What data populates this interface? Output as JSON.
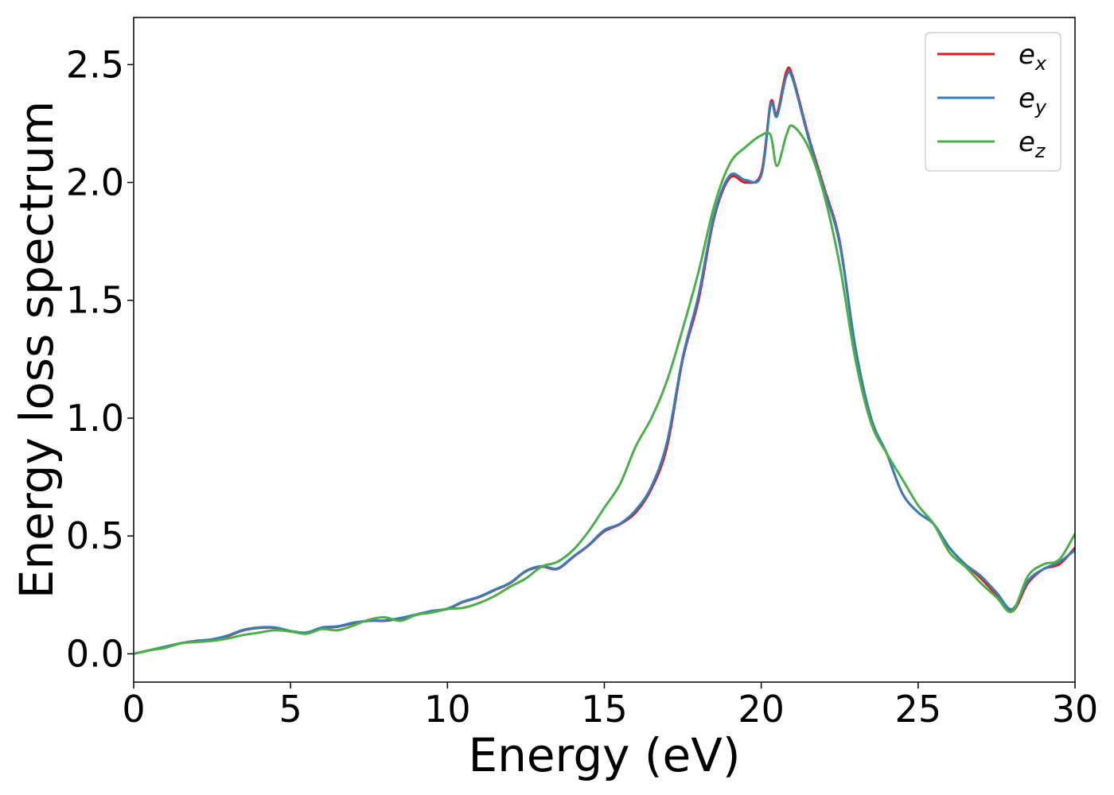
{
  "chart_data": {
    "type": "line",
    "title": "",
    "xlabel": "Energy (eV)",
    "ylabel": "Energy loss spectrum",
    "xlim": [
      0,
      30
    ],
    "ylim": [
      -0.12,
      2.7
    ],
    "xticks": [
      0,
      5,
      10,
      15,
      20,
      25,
      30
    ],
    "xtick_labels": [
      "0",
      "5",
      "10",
      "15",
      "20",
      "25",
      "30"
    ],
    "yticks": [
      0.0,
      0.5,
      1.0,
      1.5,
      2.0,
      2.5
    ],
    "ytick_labels": [
      "0.0",
      "0.5",
      "1.0",
      "1.5",
      "2.0",
      "2.5"
    ],
    "grid": false,
    "legend_position": "top-right",
    "series": [
      {
        "name": "e_x",
        "legend_base": "e",
        "legend_sub": "x",
        "color": "#e41a1c",
        "x": [
          0,
          0.5,
          1,
          1.5,
          2,
          2.5,
          3,
          3.5,
          4,
          4.5,
          5,
          5.5,
          6,
          6.5,
          7,
          7.5,
          8,
          8.5,
          9,
          9.5,
          10,
          10.5,
          11,
          11.5,
          12,
          12.5,
          13,
          13.5,
          14,
          14.5,
          15,
          15.5,
          16,
          16.5,
          17,
          17.5,
          18,
          18.5,
          19,
          19.5,
          20,
          20.3,
          20.5,
          20.8,
          21,
          21.5,
          22,
          22.5,
          23,
          23.5,
          24,
          24.5,
          25,
          25.5,
          26,
          26.5,
          27,
          27.5,
          28,
          28.5,
          29,
          29.5,
          30
        ],
        "y": [
          0,
          0.015,
          0.03,
          0.045,
          0.055,
          0.06,
          0.075,
          0.1,
          0.11,
          0.11,
          0.095,
          0.09,
          0.11,
          0.115,
          0.13,
          0.14,
          0.14,
          0.15,
          0.165,
          0.18,
          0.19,
          0.22,
          0.24,
          0.27,
          0.3,
          0.35,
          0.37,
          0.36,
          0.41,
          0.46,
          0.52,
          0.55,
          0.6,
          0.7,
          0.88,
          1.25,
          1.5,
          1.85,
          2.02,
          2.0,
          2.04,
          2.34,
          2.29,
          2.47,
          2.45,
          2.2,
          1.98,
          1.75,
          1.3,
          1.0,
          0.85,
          0.68,
          0.6,
          0.55,
          0.45,
          0.38,
          0.32,
          0.25,
          0.18,
          0.3,
          0.36,
          0.38,
          0.45
        ]
      },
      {
        "name": "e_y",
        "legend_base": "e",
        "legend_sub": "y",
        "color": "#377eb8",
        "x": [
          0,
          0.5,
          1,
          1.5,
          2,
          2.5,
          3,
          3.5,
          4,
          4.5,
          5,
          5.5,
          6,
          6.5,
          7,
          7.5,
          8,
          8.5,
          9,
          9.5,
          10,
          10.5,
          11,
          11.5,
          12,
          12.5,
          13,
          13.5,
          14,
          14.5,
          15,
          15.5,
          16,
          16.5,
          17,
          17.5,
          18,
          18.5,
          19,
          19.5,
          20,
          20.3,
          20.5,
          20.8,
          21,
          21.5,
          22,
          22.5,
          23,
          23.5,
          24,
          24.5,
          25,
          25.5,
          26,
          26.5,
          27,
          27.5,
          28,
          28.5,
          29,
          29.5,
          30
        ],
        "y": [
          0,
          0.015,
          0.03,
          0.045,
          0.055,
          0.062,
          0.078,
          0.102,
          0.112,
          0.112,
          0.097,
          0.09,
          0.112,
          0.117,
          0.132,
          0.14,
          0.142,
          0.152,
          0.167,
          0.182,
          0.192,
          0.222,
          0.242,
          0.272,
          0.302,
          0.352,
          0.372,
          0.362,
          0.412,
          0.462,
          0.525,
          0.552,
          0.61,
          0.71,
          0.9,
          1.26,
          1.52,
          1.86,
          2.03,
          2.01,
          2.03,
          2.33,
          2.28,
          2.45,
          2.44,
          2.19,
          1.97,
          1.74,
          1.3,
          1.0,
          0.85,
          0.68,
          0.6,
          0.55,
          0.45,
          0.38,
          0.33,
          0.26,
          0.19,
          0.31,
          0.36,
          0.39,
          0.44
        ]
      },
      {
        "name": "e_z",
        "legend_base": "e",
        "legend_sub": "z",
        "color": "#4daf4a",
        "x": [
          0,
          0.5,
          1,
          1.5,
          2,
          2.5,
          3,
          3.5,
          4,
          4.5,
          5,
          5.5,
          6,
          6.5,
          7,
          7.5,
          8,
          8.5,
          9,
          9.5,
          10,
          10.5,
          11,
          11.5,
          12,
          12.5,
          13,
          13.5,
          14,
          14.5,
          15,
          15.5,
          16,
          16.5,
          17,
          17.5,
          18,
          18.5,
          19,
          19.5,
          20,
          20.3,
          20.5,
          20.8,
          21,
          21.5,
          22,
          22.5,
          23,
          23.5,
          24,
          24.5,
          25,
          25.5,
          26,
          26.5,
          27,
          27.5,
          28,
          28.5,
          29,
          29.5,
          30
        ],
        "y": [
          0,
          0.015,
          0.025,
          0.045,
          0.05,
          0.055,
          0.065,
          0.08,
          0.09,
          0.1,
          0.095,
          0.085,
          0.105,
          0.1,
          0.12,
          0.145,
          0.155,
          0.14,
          0.165,
          0.175,
          0.19,
          0.195,
          0.215,
          0.245,
          0.285,
          0.32,
          0.37,
          0.39,
          0.44,
          0.52,
          0.62,
          0.72,
          0.88,
          1.0,
          1.16,
          1.38,
          1.62,
          1.9,
          2.08,
          2.15,
          2.2,
          2.2,
          2.07,
          2.2,
          2.24,
          2.15,
          1.95,
          1.65,
          1.25,
          0.98,
          0.85,
          0.74,
          0.63,
          0.55,
          0.43,
          0.37,
          0.3,
          0.24,
          0.18,
          0.33,
          0.38,
          0.4,
          0.51
        ]
      }
    ]
  }
}
